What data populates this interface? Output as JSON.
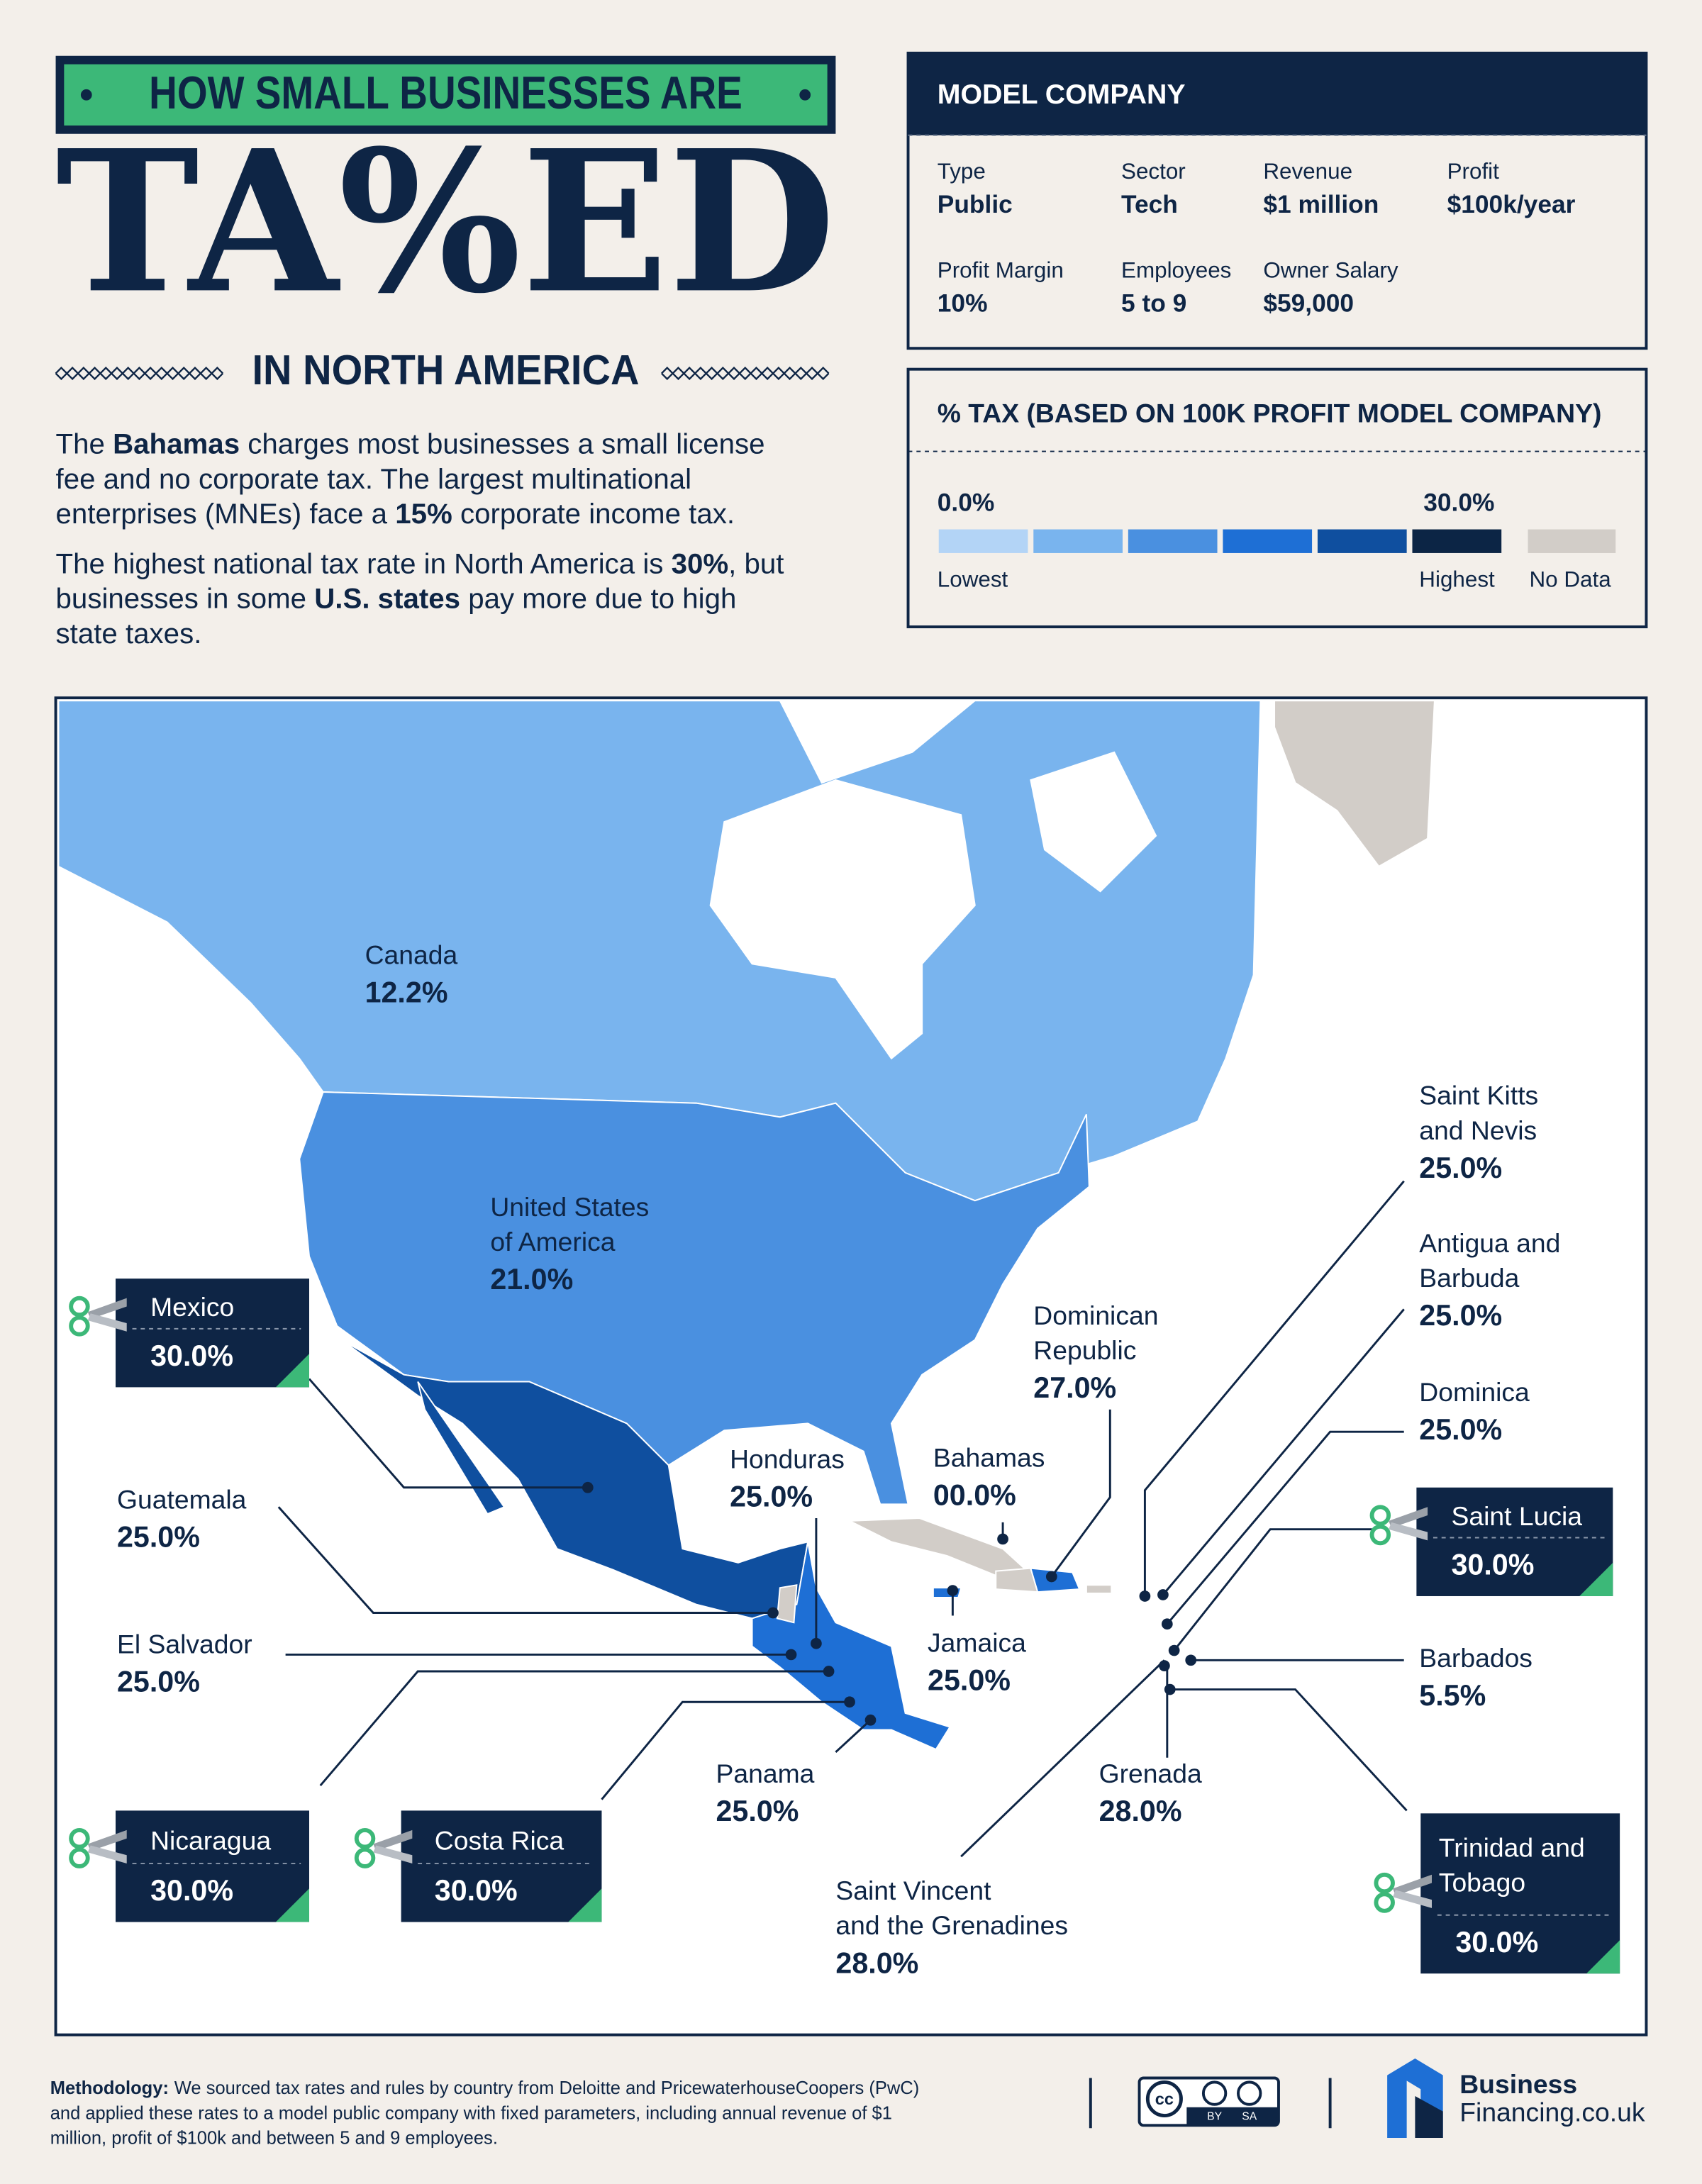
{
  "header": {
    "banner": "HOW SMALL BUSINESSES ARE",
    "title": "TA%ED",
    "subtitle": "IN NORTH AMERICA"
  },
  "intro": {
    "paragraphs": [
      {
        "lines": [
          [
            {
              "text": "The "
            },
            {
              "text": "Bahamas",
              "bold": true
            },
            {
              "text": " charges most businesses a small license"
            }
          ],
          [
            {
              "text": "fee and no corporate tax. The largest multinational"
            }
          ],
          [
            {
              "text": "enterprises (MNEs) face a "
            },
            {
              "text": "15%",
              "bold": true
            },
            {
              "text": " corporate income tax."
            }
          ]
        ]
      },
      {
        "lines": [
          [
            {
              "text": "The highest national tax rate in North America is "
            },
            {
              "text": "30%",
              "bold": true
            },
            {
              "text": ", but"
            }
          ],
          [
            {
              "text": "businesses in some "
            },
            {
              "text": "U.S. states",
              "bold": true
            },
            {
              "text": " pay more due to high"
            }
          ],
          [
            {
              "text": "state taxes."
            }
          ]
        ]
      }
    ]
  },
  "model_company": {
    "heading": "MODEL COMPANY",
    "fields": [
      {
        "label": "Type",
        "value": "Public"
      },
      {
        "label": "Sector",
        "value": "Tech"
      },
      {
        "label": "Revenue",
        "value": "$1 million"
      },
      {
        "label": "Profit",
        "value": "$100k/year"
      },
      {
        "label": "Profit Margin",
        "value": "10%"
      },
      {
        "label": "Employees",
        "value": "5 to 9"
      },
      {
        "label": "Owner Salary",
        "value": "$59,000"
      }
    ]
  },
  "legend": {
    "heading": "% TAX (BASED ON 100K PROFIT MODEL COMPANY)",
    "min_label": "0.0%",
    "max_label": "30.0%",
    "low_label": "Lowest",
    "high_label": "Highest",
    "no_data_label": "No Data",
    "colors": [
      "#b3d4f6",
      "#79b4ee",
      "#4a90e0",
      "#1e6fd5",
      "#0f4f9f",
      "#0c2545"
    ],
    "no_data_color": "#d2cdc8"
  },
  "countries": [
    {
      "name": [
        "Canada"
      ],
      "rate": "12.2%",
      "color": "#79b4ee",
      "highlight": false
    },
    {
      "name": [
        "United States",
        "of America"
      ],
      "rate": "21.0%",
      "color": "#4a90e0",
      "highlight": false
    },
    {
      "name": [
        "Mexico"
      ],
      "rate": "30.0%",
      "color": "#0f4f9f",
      "highlight": true
    },
    {
      "name": [
        "Guatemala"
      ],
      "rate": "25.0%",
      "color": "#1e6fd5",
      "highlight": false
    },
    {
      "name": [
        "El Salvador"
      ],
      "rate": "25.0%",
      "color": "#1e6fd5",
      "highlight": false
    },
    {
      "name": [
        "Nicaragua"
      ],
      "rate": "30.0%",
      "color": "#0f4f9f",
      "highlight": true
    },
    {
      "name": [
        "Costa Rica"
      ],
      "rate": "30.0%",
      "color": "#0f4f9f",
      "highlight": true
    },
    {
      "name": [
        "Honduras"
      ],
      "rate": "25.0%",
      "color": "#1e6fd5",
      "highlight": false
    },
    {
      "name": [
        "Panama"
      ],
      "rate": "25.0%",
      "color": "#1e6fd5",
      "highlight": false
    },
    {
      "name": [
        "Bahamas"
      ],
      "rate": "00.0%",
      "color": "#b3d4f6",
      "highlight": false
    },
    {
      "name": [
        "Jamaica"
      ],
      "rate": "25.0%",
      "color": "#1e6fd5",
      "highlight": false
    },
    {
      "name": [
        "Dominican",
        "Republic"
      ],
      "rate": "27.0%",
      "color": "#1e6fd5",
      "highlight": false
    },
    {
      "name": [
        "Saint Kitts",
        "and Nevis"
      ],
      "rate": "25.0%",
      "color": "#1e6fd5",
      "highlight": false
    },
    {
      "name": [
        "Antigua and",
        "Barbuda"
      ],
      "rate": "25.0%",
      "color": "#1e6fd5",
      "highlight": false
    },
    {
      "name": [
        "Dominica"
      ],
      "rate": "25.0%",
      "color": "#1e6fd5",
      "highlight": false
    },
    {
      "name": [
        "Saint Lucia"
      ],
      "rate": "30.0%",
      "color": "#0f4f9f",
      "highlight": true
    },
    {
      "name": [
        "Barbados"
      ],
      "rate": "5.5%",
      "color": "#b3d4f6",
      "highlight": false
    },
    {
      "name": [
        "Grenada"
      ],
      "rate": "28.0%",
      "color": "#1e6fd5",
      "highlight": false
    },
    {
      "name": [
        "Saint Vincent",
        "and the Grenadines"
      ],
      "rate": "28.0%",
      "color": "#1e6fd5",
      "highlight": false
    },
    {
      "name": [
        "Trinidad and",
        "Tobago"
      ],
      "rate": "30.0%",
      "color": "#0f4f9f",
      "highlight": true
    }
  ],
  "footer": {
    "methodology_label": "Methodology:",
    "methodology_lines": [
      "We sourced tax rates and rules by country from Deloitte and PricewaterhouseCoopers (PwC)",
      "and applied these rates to a model public company with fixed parameters, including annual revenue of $1",
      "million, profit of $100k and between 5 and 9 employees."
    ],
    "license": {
      "cc": "cc",
      "by": "BY",
      "sa": "SA"
    },
    "logo": [
      "Business",
      "Financing.co.uk"
    ]
  }
}
